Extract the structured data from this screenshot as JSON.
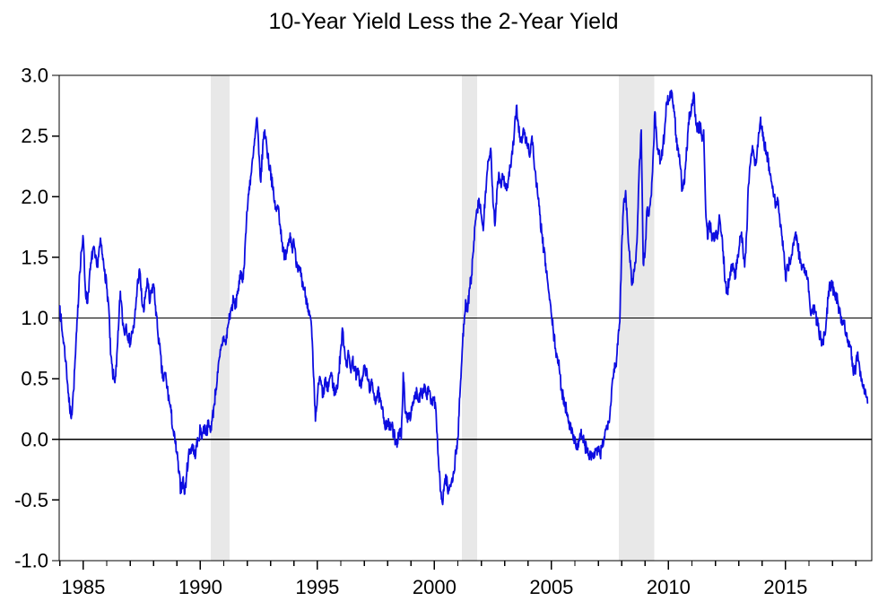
{
  "title": "10-Year Yield Less the 2-Year Yield",
  "chart_data": {
    "type": "line",
    "title": "10-Year Yield Less the 2-Year Yield",
    "series": [
      {
        "name": "10-year yield minus 2-year yield (percentage points)",
        "start_year": 1984,
        "start_month": 1,
        "frequency": "monthly",
        "values": [
          1.1,
          0.9,
          0.8,
          0.65,
          0.45,
          0.25,
          0.2,
          0.4,
          0.7,
          1.0,
          1.35,
          1.55,
          1.65,
          1.25,
          1.12,
          1.3,
          1.45,
          1.58,
          1.5,
          1.42,
          1.55,
          1.62,
          1.48,
          1.4,
          1.25,
          1.1,
          0.7,
          0.55,
          0.48,
          0.6,
          0.9,
          1.22,
          1.0,
          0.88,
          0.95,
          0.85,
          0.8,
          0.88,
          0.92,
          1.12,
          1.32,
          1.38,
          1.15,
          1.05,
          1.22,
          1.3,
          1.12,
          1.22,
          1.28,
          1.1,
          0.92,
          0.78,
          0.6,
          0.48,
          0.55,
          0.42,
          0.32,
          0.22,
          0.08,
          -0.02,
          -0.12,
          -0.28,
          -0.42,
          -0.33,
          -0.45,
          -0.28,
          -0.12,
          -0.08,
          -0.04,
          -0.14,
          -0.06,
          0.0,
          0.08,
          0.04,
          0.1,
          0.06,
          0.12,
          0.08,
          0.15,
          0.28,
          0.42,
          0.55,
          0.68,
          0.78,
          0.85,
          0.78,
          0.92,
          1.02,
          1.08,
          1.15,
          1.08,
          1.22,
          1.28,
          1.38,
          1.32,
          1.62,
          1.88,
          2.08,
          2.18,
          2.32,
          2.48,
          2.65,
          2.35,
          2.12,
          2.42,
          2.55,
          2.42,
          2.28,
          2.22,
          2.08,
          1.95,
          1.88,
          1.92,
          1.75,
          1.62,
          1.48,
          1.55,
          1.62,
          1.7,
          1.58,
          1.62,
          1.45,
          1.38,
          1.42,
          1.32,
          1.25,
          1.18,
          1.12,
          1.02,
          0.92,
          0.52,
          0.15,
          0.35,
          0.5,
          0.45,
          0.35,
          0.5,
          0.4,
          0.48,
          0.55,
          0.45,
          0.38,
          0.42,
          0.55,
          0.75,
          0.9,
          0.72,
          0.62,
          0.7,
          0.58,
          0.65,
          0.6,
          0.52,
          0.55,
          0.45,
          0.48,
          0.6,
          0.55,
          0.48,
          0.42,
          0.45,
          0.38,
          0.32,
          0.4,
          0.32,
          0.25,
          0.18,
          0.12,
          0.15,
          0.08,
          0.12,
          0.05,
          0.0,
          -0.02,
          0.08,
          0.0,
          0.55,
          0.22,
          0.18,
          0.22,
          0.2,
          0.28,
          0.35,
          0.4,
          0.32,
          0.42,
          0.38,
          0.45,
          0.35,
          0.42,
          0.32,
          0.28,
          0.35,
          0.15,
          -0.15,
          -0.42,
          -0.52,
          -0.38,
          -0.3,
          -0.45,
          -0.38,
          -0.32,
          -0.28,
          -0.1,
          0.0,
          0.35,
          0.65,
          0.95,
          1.15,
          1.05,
          1.25,
          1.35,
          1.55,
          1.8,
          1.9,
          1.95,
          1.85,
          1.72,
          2.0,
          2.2,
          2.3,
          2.37,
          1.95,
          1.76,
          2.05,
          2.2,
          2.1,
          2.18,
          2.12,
          2.05,
          2.15,
          2.25,
          2.35,
          2.55,
          2.75,
          2.6,
          2.45,
          2.48,
          2.55,
          2.45,
          2.42,
          2.35,
          2.5,
          2.3,
          2.15,
          2.0,
          1.85,
          1.7,
          1.55,
          1.45,
          1.3,
          1.15,
          1.02,
          0.88,
          0.75,
          0.68,
          0.58,
          0.42,
          0.35,
          0.28,
          0.22,
          0.15,
          0.08,
          0.02,
          0.02,
          -0.08,
          -0.02,
          0.05,
          0.02,
          -0.05,
          -0.08,
          -0.12,
          -0.15,
          -0.12,
          -0.15,
          -0.08,
          -0.1,
          -0.14,
          -0.05,
          0.02,
          0.08,
          0.15,
          0.22,
          0.45,
          0.58,
          0.62,
          0.78,
          0.97,
          1.6,
          1.95,
          2.05,
          1.75,
          1.55,
          1.3,
          1.35,
          1.45,
          1.7,
          2.25,
          2.55,
          1.45,
          1.55,
          1.9,
          1.85,
          2.0,
          2.3,
          2.7,
          2.45,
          2.35,
          2.3,
          2.4,
          2.55,
          2.78,
          2.8,
          2.85,
          2.8,
          2.7,
          2.45,
          2.4,
          2.25,
          2.05,
          2.1,
          2.3,
          2.55,
          2.7,
          2.75,
          2.85,
          2.6,
          2.55,
          2.6,
          2.5,
          2.55,
          1.9,
          1.65,
          1.8,
          1.7,
          1.65,
          1.7,
          1.65,
          1.85,
          1.7,
          1.55,
          1.3,
          1.2,
          1.32,
          1.42,
          1.45,
          1.32,
          1.48,
          1.55,
          1.68,
          1.62,
          1.42,
          1.7,
          2.1,
          2.28,
          2.42,
          2.32,
          2.28,
          2.48,
          2.62,
          2.58,
          2.42,
          2.38,
          2.3,
          2.18,
          2.1,
          2.0,
          1.92,
          1.98,
          1.82,
          1.68,
          1.55,
          1.32,
          1.42,
          1.45,
          1.52,
          1.62,
          1.7,
          1.62,
          1.52,
          1.45,
          1.42,
          1.38,
          1.32,
          1.22,
          1.02,
          1.08,
          1.05,
          0.98,
          0.9,
          0.82,
          0.8,
          0.88,
          1.0,
          1.22,
          1.28,
          1.25,
          1.22,
          1.18,
          1.1,
          1.05,
          0.95,
          0.98,
          0.88,
          0.82,
          0.78,
          0.68,
          0.55,
          0.6,
          0.72,
          0.58,
          0.5,
          0.45,
          0.4,
          0.3
        ]
      }
    ],
    "xlim": [
      1983.97,
      2018.68
    ],
    "ylim": [
      -1.0,
      3.0
    ],
    "x_major_ticks": [
      1985,
      1990,
      1995,
      2000,
      2005,
      2010,
      2015
    ],
    "x_major_tick_labels": [
      "1985",
      "1990",
      "1995",
      "2000",
      "2005",
      "2010",
      "2015"
    ],
    "x_minor_tick_step_years": 1,
    "y_ticks": [
      3.0,
      2.5,
      2.0,
      1.5,
      1.0,
      0.5,
      0.0,
      -0.5,
      -1.0
    ],
    "y_tick_labels": [
      "3.0",
      "2.5",
      "2.0",
      "1.5",
      "1.0",
      "0.5",
      "0.0",
      "-0.5",
      "-1.0"
    ],
    "reference_lines": [
      1.0,
      0.0
    ],
    "recession_bands": [
      {
        "from": 1990.45,
        "to": 1991.25
      },
      {
        "from": 2001.17,
        "to": 2001.83
      },
      {
        "from": 2007.87,
        "to": 2009.4
      }
    ],
    "grid": false,
    "legend": "none",
    "line_color": "#0d0de0",
    "band_color": "#e8e8e8",
    "axis_color": "#000000",
    "background_color": "#ffffff"
  }
}
